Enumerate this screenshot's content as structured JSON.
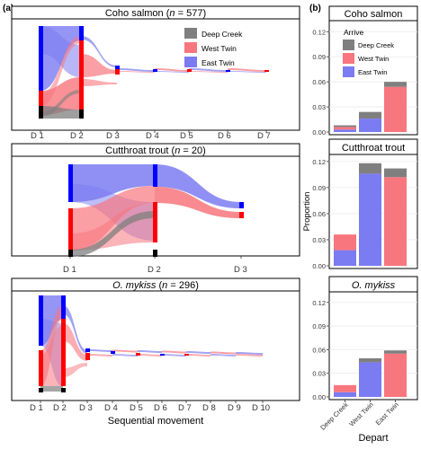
{
  "panel_a_label": "(a)",
  "panel_b_label": "(b)",
  "colors": {
    "deep_creek": "#7f7f7f",
    "west_twin": "#f8767d",
    "east_twin": "#7b7bf2",
    "deep_node": "#000000",
    "west_node": "#ff0000",
    "east_node": "#0000ff"
  },
  "chart_data": [
    {
      "type": "sankey",
      "panel": "a",
      "title": "Coho salmon",
      "n": "577",
      "xlabel": "",
      "steps": [
        "D 1",
        "D 2",
        "D 3",
        "D 4",
        "D 5",
        "D 6",
        "D 7"
      ],
      "legend": [
        "Deep Creek",
        "West Twin",
        "East Twin"
      ],
      "legend_placement": "top-right"
    },
    {
      "type": "sankey",
      "panel": "a",
      "title": "Cutthroat trout",
      "n": "20",
      "xlabel": "",
      "steps": [
        "D 1",
        "D 2",
        "D 3"
      ]
    },
    {
      "type": "sankey",
      "panel": "a",
      "title": "O. mykiss",
      "n": "296",
      "xlabel": "Sequential movement",
      "steps": [
        "D 1",
        "D 2",
        "D 3",
        "D 4",
        "D 5",
        "D 6",
        "D 7",
        "D 8",
        "D 9",
        "D 10"
      ]
    },
    {
      "type": "bar",
      "panel": "b",
      "title": "Coho salmon",
      "categories": [
        "Deep Creek",
        "West Twin",
        "East Twin"
      ],
      "legend_title": "Arrive",
      "legend": [
        "Deep Creek",
        "West Twin",
        "East Twin"
      ],
      "legend_placement": "top-left",
      "ylim": [
        0,
        0.13
      ],
      "yticks": [
        "0.00",
        "0.03",
        "0.06",
        "0.09",
        "0.12"
      ],
      "series": [
        {
          "name": "East Twin",
          "values": [
            0.003,
            0.016,
            0.0
          ]
        },
        {
          "name": "West Twin",
          "values": [
            0.003,
            0.0,
            0.054
          ]
        },
        {
          "name": "Deep Creek",
          "values": [
            0.002,
            0.008,
            0.006
          ]
        }
      ]
    },
    {
      "type": "bar",
      "panel": "b",
      "title": "Cutthroat trout",
      "categories": [
        "Deep Creek",
        "West Twin",
        "East Twin"
      ],
      "ylabel": "Proportion",
      "ylim": [
        0,
        0.125
      ],
      "yticks": [
        "0.00",
        "0.03",
        "0.06",
        "0.09",
        "0.12"
      ],
      "series": [
        {
          "name": "East Twin",
          "values": [
            0.018,
            0.106,
            0.0
          ]
        },
        {
          "name": "West Twin",
          "values": [
            0.018,
            0.0,
            0.102
          ]
        },
        {
          "name": "Deep Creek",
          "values": [
            0.0,
            0.012,
            0.01
          ]
        }
      ]
    },
    {
      "type": "bar",
      "panel": "b",
      "title": "O. mykiss",
      "categories": [
        "Deep Creek",
        "West Twin",
        "East Twin"
      ],
      "xlabel": "Depart",
      "ylim": [
        0,
        0.13
      ],
      "yticks": [
        "0.00",
        "0.03",
        "0.06",
        "0.09",
        "0.12"
      ],
      "series": [
        {
          "name": "East Twin",
          "values": [
            0.006,
            0.044,
            0.0
          ]
        },
        {
          "name": "West Twin",
          "values": [
            0.009,
            0.0,
            0.055
          ]
        },
        {
          "name": "Deep Creek",
          "values": [
            0.0,
            0.005,
            0.004
          ]
        }
      ]
    }
  ]
}
